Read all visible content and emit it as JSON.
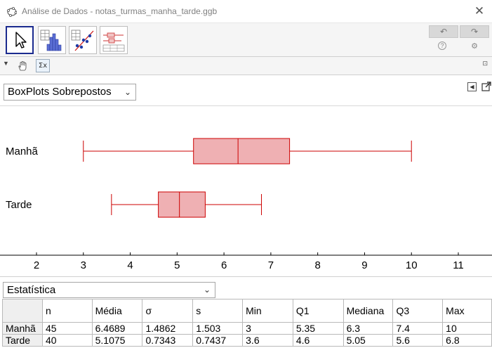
{
  "window": {
    "title": "Análise de Dados - notas_turmas_manha_tarde.ggb",
    "close_label": "✕",
    "app_icon": "geogebra-icon"
  },
  "toolbar": {
    "tools": [
      {
        "name": "move-tool",
        "icon": "arrow-cursor-icon",
        "active": true
      },
      {
        "name": "histogram-tool",
        "icon": "histogram-icon",
        "active": false
      },
      {
        "name": "scatter-tool",
        "icon": "scatter-plot-icon",
        "active": false
      },
      {
        "name": "boxplot-tool",
        "icon": "boxplot-icon",
        "active": false
      }
    ],
    "undo_label": "↶",
    "redo_label": "↷",
    "help_icon": "?",
    "settings_icon": "⚙"
  },
  "stylebar": {
    "toggle_icon": "▼",
    "sigma_label": "Σx",
    "corner_icon": "⊡"
  },
  "plot_panel": {
    "plot_type_selected": "BoxPlots Sobrepostos",
    "dropdown_arrow": "⌄"
  },
  "chart_data": {
    "type": "boxplot",
    "title": "",
    "xlabel": "",
    "ylabel": "",
    "xlim": [
      1.5,
      12.3
    ],
    "x_ticks": [
      2,
      3,
      4,
      5,
      6,
      7,
      8,
      9,
      10,
      11
    ],
    "orientation": "horizontal",
    "box_color": "#efb0b3",
    "line_color": "#cc0000",
    "series": [
      {
        "name": "Manhã",
        "min": 3,
        "q1": 5.35,
        "median": 6.3,
        "q3": 7.4,
        "max": 10
      },
      {
        "name": "Tarde",
        "min": 3.6,
        "q1": 4.6,
        "median": 5.05,
        "q3": 5.6,
        "max": 6.8
      }
    ]
  },
  "stats_panel": {
    "selector_value": "Estatística",
    "dropdown_arrow": "⌄",
    "columns": [
      "n",
      "Média",
      "σ",
      "s",
      "Min",
      "Q1",
      "Mediana",
      "Q3",
      "Max"
    ],
    "rows": [
      {
        "label": "Manhã",
        "values": [
          "45",
          "6.4689",
          "1.4862",
          "1.503",
          "3",
          "5.35",
          "6.3",
          "7.4",
          "10"
        ]
      },
      {
        "label": "Tarde",
        "values": [
          "40",
          "5.1075",
          "0.7343",
          "0.7437",
          "3.6",
          "4.6",
          "5.05",
          "5.6",
          "6.8"
        ]
      }
    ]
  }
}
